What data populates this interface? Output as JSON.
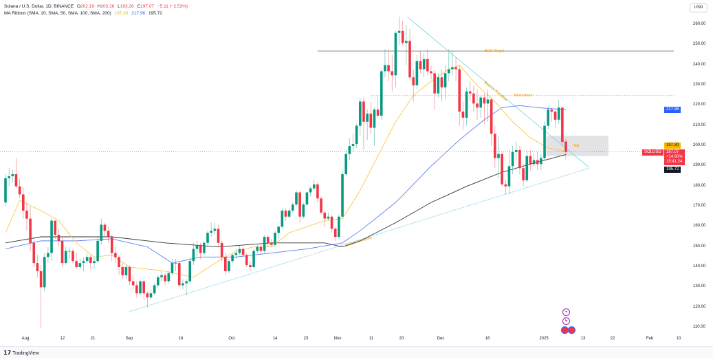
{
  "header": {
    "symbol": "Solana / U.S. Dollar, 1D, BINANCE",
    "o_label": "O",
    "o": "202.19",
    "h_label": "H",
    "h": "203.26",
    "l_label": "L",
    "l": "193.26",
    "c_label": "C",
    "c": "197.07",
    "change": "−5.11 (−2.53%)",
    "ma_label": "MA Ribbon (SMA, 20, SMA, 50, SMA, 100, SMA, 200)",
    "ma1": "197.30",
    "ma2": "217.96",
    "ma3": "195.72"
  },
  "currency": "USD",
  "price_ticks": [
    "260.00",
    "250.00",
    "240.00",
    "230.00",
    "220.00",
    "210.00",
    "200.00",
    "190.00",
    "180.00",
    "170.00",
    "160.00",
    "150.00",
    "140.00",
    "130.00",
    "120.00",
    "110.00"
  ],
  "tags": {
    "ma50": "217.96",
    "ma20": "197.30",
    "symbol": "SOLUSD",
    "price": "197.07",
    "pct": "+14.60%",
    "countdown": "15:41:24",
    "ma200": "195.72"
  },
  "time_ticks": [
    "Aug",
    "12",
    "21",
    "Sep",
    "16",
    "Oct",
    "14",
    "23",
    "Nov",
    "11",
    "20",
    "Dec",
    "16",
    "2025",
    "13",
    "22",
    "Feb",
    "10"
  ],
  "footer": {
    "brand": "TradingView"
  },
  "colors": {
    "up": "#089981",
    "down": "#f23645",
    "sma20": "#f7c948",
    "sma50": "#5b7cf7",
    "sma200": "#333333",
    "trend": "#7fd7ea",
    "level": "#888888",
    "annot": "#f5a623"
  },
  "chart_data": {
    "type": "candlestick",
    "ylim": [
      105,
      265
    ],
    "ohlc": [
      [
        172,
        186,
        170,
        184
      ],
      [
        184,
        189,
        180,
        185
      ],
      [
        185,
        188,
        182,
        186
      ],
      [
        186,
        194,
        179,
        180
      ],
      [
        180,
        184,
        174,
        176
      ],
      [
        176,
        180,
        164,
        168
      ],
      [
        168,
        172,
        158,
        164
      ],
      [
        164,
        170,
        148,
        152
      ],
      [
        152,
        155,
        140,
        142
      ],
      [
        142,
        146,
        135,
        138
      ],
      [
        138,
        141,
        110,
        130
      ],
      [
        130,
        147,
        128,
        145
      ],
      [
        145,
        150,
        142,
        147
      ],
      [
        147,
        164,
        143,
        163
      ],
      [
        163,
        163,
        154,
        156
      ],
      [
        156,
        159,
        150,
        153
      ],
      [
        153,
        155,
        140,
        142
      ],
      [
        142,
        150,
        141,
        148
      ],
      [
        148,
        150,
        144,
        148
      ],
      [
        148,
        149,
        142,
        143
      ],
      [
        143,
        147,
        139,
        140
      ],
      [
        140,
        144,
        139,
        142
      ],
      [
        142,
        145,
        138,
        143
      ],
      [
        143,
        147,
        142,
        145
      ],
      [
        145,
        146,
        139,
        142
      ],
      [
        142,
        145,
        139,
        143
      ],
      [
        143,
        155,
        142,
        153
      ],
      [
        153,
        164,
        151,
        161
      ],
      [
        161,
        162,
        155,
        158
      ],
      [
        158,
        160,
        152,
        155
      ],
      [
        155,
        156,
        143,
        147
      ],
      [
        147,
        150,
        142,
        145
      ],
      [
        145,
        146,
        136,
        140
      ],
      [
        140,
        142,
        134,
        136
      ],
      [
        136,
        141,
        134,
        140
      ],
      [
        140,
        141,
        131,
        133
      ],
      [
        133,
        136,
        129,
        131
      ],
      [
        131,
        133,
        125,
        127
      ],
      [
        127,
        134,
        126,
        133
      ],
      [
        133,
        134,
        124,
        127
      ],
      [
        127,
        128,
        120,
        125
      ],
      [
        125,
        129,
        124,
        127
      ],
      [
        127,
        132,
        126,
        131
      ],
      [
        131,
        136,
        130,
        135
      ],
      [
        135,
        138,
        133,
        136
      ],
      [
        136,
        137,
        131,
        133
      ],
      [
        133,
        138,
        132,
        137
      ],
      [
        137,
        144,
        136,
        142
      ],
      [
        142,
        144,
        138,
        142
      ],
      [
        142,
        143,
        130,
        131
      ],
      [
        131,
        134,
        129,
        132
      ],
      [
        132,
        134,
        126,
        133
      ],
      [
        133,
        145,
        132,
        143
      ],
      [
        143,
        152,
        141,
        149
      ],
      [
        149,
        153,
        145,
        151
      ],
      [
        151,
        152,
        144,
        147
      ],
      [
        147,
        153,
        146,
        152
      ],
      [
        152,
        158,
        150,
        157
      ],
      [
        157,
        162,
        155,
        158
      ],
      [
        158,
        162,
        156,
        159
      ],
      [
        159,
        161,
        150,
        152
      ],
      [
        152,
        153,
        143,
        145
      ],
      [
        145,
        147,
        136,
        138
      ],
      [
        138,
        144,
        137,
        143
      ],
      [
        143,
        147,
        142,
        146
      ],
      [
        146,
        149,
        144,
        147
      ],
      [
        147,
        151,
        146,
        149
      ],
      [
        149,
        150,
        145,
        146
      ],
      [
        146,
        147,
        140,
        141
      ],
      [
        141,
        143,
        138,
        140
      ],
      [
        140,
        149,
        139,
        148
      ],
      [
        148,
        151,
        147,
        150
      ],
      [
        150,
        151,
        146,
        148
      ],
      [
        148,
        156,
        147,
        155
      ],
      [
        155,
        156,
        150,
        152
      ],
      [
        152,
        154,
        150,
        151
      ],
      [
        151,
        158,
        150,
        157
      ],
      [
        157,
        161,
        154,
        160
      ],
      [
        160,
        169,
        159,
        168
      ],
      [
        168,
        169,
        163,
        165
      ],
      [
        165,
        169,
        164,
        168
      ],
      [
        168,
        172,
        167,
        171
      ],
      [
        171,
        178,
        170,
        177
      ],
      [
        177,
        178,
        162,
        165
      ],
      [
        165,
        172,
        164,
        171
      ],
      [
        171,
        177,
        170,
        177
      ],
      [
        177,
        180,
        175,
        179
      ],
      [
        179,
        183,
        178,
        181
      ],
      [
        181,
        182,
        172,
        174
      ],
      [
        174,
        175,
        166,
        167
      ],
      [
        167,
        168,
        160,
        164
      ],
      [
        164,
        167,
        163,
        165
      ],
      [
        165,
        166,
        157,
        159
      ],
      [
        159,
        160,
        153,
        155
      ],
      [
        155,
        166,
        154,
        165
      ],
      [
        165,
        188,
        164,
        186
      ],
      [
        186,
        198,
        185,
        196
      ],
      [
        196,
        204,
        193,
        200
      ],
      [
        200,
        206,
        197,
        201
      ],
      [
        201,
        211,
        199,
        210
      ],
      [
        210,
        224,
        205,
        222
      ],
      [
        222,
        224,
        198,
        212
      ],
      [
        212,
        218,
        203,
        216
      ],
      [
        216,
        222,
        206,
        209
      ],
      [
        209,
        219,
        200,
        218
      ],
      [
        218,
        225,
        214,
        215
      ],
      [
        215,
        238,
        213,
        237
      ],
      [
        237,
        248,
        234,
        240
      ],
      [
        240,
        248,
        232,
        237
      ],
      [
        237,
        245,
        227,
        235
      ],
      [
        235,
        257,
        229,
        256
      ],
      [
        256,
        264,
        250,
        257
      ],
      [
        257,
        262,
        250,
        251
      ],
      [
        251,
        260,
        240,
        252
      ],
      [
        252,
        258,
        233,
        234
      ],
      [
        234,
        238,
        222,
        230
      ],
      [
        230,
        245,
        228,
        242
      ],
      [
        242,
        247,
        236,
        238
      ],
      [
        238,
        246,
        234,
        243
      ],
      [
        243,
        248,
        235,
        237
      ],
      [
        237,
        240,
        233,
        236
      ],
      [
        236,
        238,
        218,
        226
      ],
      [
        226,
        236,
        224,
        234
      ],
      [
        234,
        238,
        222,
        229
      ],
      [
        229,
        240,
        223,
        236
      ],
      [
        236,
        248,
        232,
        238
      ],
      [
        238,
        247,
        235,
        239
      ],
      [
        239,
        244,
        232,
        238
      ],
      [
        238,
        240,
        210,
        217
      ],
      [
        217,
        222,
        208,
        214
      ],
      [
        214,
        229,
        210,
        227
      ],
      [
        227,
        232,
        222,
        226
      ],
      [
        226,
        230,
        217,
        221
      ],
      [
        221,
        228,
        213,
        219
      ],
      [
        219,
        225,
        214,
        224
      ],
      [
        224,
        226,
        211,
        221
      ],
      [
        221,
        228,
        212,
        223
      ],
      [
        223,
        224,
        200,
        206
      ],
      [
        206,
        210,
        189,
        194
      ],
      [
        194,
        205,
        184,
        196
      ],
      [
        196,
        197,
        180,
        181
      ],
      [
        181,
        183,
        176,
        180
      ],
      [
        180,
        198,
        176,
        190
      ],
      [
        190,
        200,
        186,
        197
      ],
      [
        197,
        202,
        193,
        198
      ],
      [
        198,
        200,
        186,
        189
      ],
      [
        189,
        191,
        180,
        183
      ],
      [
        183,
        198,
        182,
        195
      ],
      [
        195,
        198,
        188,
        191
      ],
      [
        191,
        196,
        190,
        193
      ],
      [
        193,
        197,
        188,
        191
      ],
      [
        191,
        196,
        188,
        194
      ],
      [
        194,
        212,
        193,
        210
      ],
      [
        210,
        220,
        208,
        218
      ],
      [
        218,
        219,
        212,
        217
      ],
      [
        217,
        218,
        209,
        213
      ],
      [
        213,
        223,
        211,
        219
      ],
      [
        219,
        219,
        200,
        202
      ],
      [
        202.19,
        203.26,
        193.26,
        197.07
      ]
    ],
    "sma20": [
      [
        0,
        157
      ],
      [
        4,
        173
      ],
      [
        10,
        168
      ],
      [
        15,
        163
      ],
      [
        20,
        152
      ],
      [
        25,
        145
      ],
      [
        30,
        146
      ],
      [
        35,
        140
      ],
      [
        45,
        138
      ],
      [
        50,
        136
      ],
      [
        53,
        135
      ],
      [
        60,
        143
      ],
      [
        65,
        148
      ],
      [
        70,
        150
      ],
      [
        75,
        150
      ],
      [
        80,
        157
      ],
      [
        90,
        163
      ],
      [
        95,
        164
      ],
      [
        100,
        178
      ],
      [
        105,
        195
      ],
      [
        110,
        212
      ],
      [
        115,
        225
      ],
      [
        120,
        232
      ],
      [
        125,
        238
      ],
      [
        128,
        240
      ],
      [
        133,
        230
      ],
      [
        138,
        222
      ],
      [
        143,
        212
      ],
      [
        148,
        204
      ],
      [
        153,
        199
      ],
      [
        158,
        197.3
      ]
    ],
    "sma50": [
      [
        0,
        149
      ],
      [
        10,
        153
      ],
      [
        20,
        153
      ],
      [
        30,
        154
      ],
      [
        40,
        150
      ],
      [
        47,
        142
      ],
      [
        55,
        145
      ],
      [
        65,
        145
      ],
      [
        75,
        147
      ],
      [
        85,
        149
      ],
      [
        95,
        152
      ],
      [
        100,
        158
      ],
      [
        110,
        172
      ],
      [
        120,
        190
      ],
      [
        128,
        203
      ],
      [
        135,
        213
      ],
      [
        140,
        219
      ],
      [
        145,
        220
      ],
      [
        150,
        219
      ],
      [
        158,
        217.96
      ]
    ],
    "sma200": [
      [
        0,
        152
      ],
      [
        10,
        155
      ],
      [
        30,
        155
      ],
      [
        45,
        152
      ],
      [
        60,
        150
      ],
      [
        75,
        152
      ],
      [
        90,
        152
      ],
      [
        95,
        150
      ],
      [
        100,
        153
      ],
      [
        110,
        162
      ],
      [
        120,
        172
      ],
      [
        130,
        180
      ],
      [
        140,
        187
      ],
      [
        150,
        192
      ],
      [
        158,
        195.72
      ]
    ],
    "annotations": {
      "bulls_target": {
        "label": "Bulls Target",
        "price": 247,
        "from": 88
      },
      "resistance": {
        "label": "Resistance",
        "price": 225,
        "from": 103
      },
      "bearish_trendline": {
        "label": "Bearish Trendline",
        "points": [
          [
            113.4,
            263.7
          ],
          [
            164.5,
            189.4
          ]
        ]
      },
      "bullish_trendline": {
        "label": "Bullish Trendline",
        "points": [
          [
            35,
            118
          ],
          [
            164.5,
            189
          ]
        ]
      },
      "fvg": {
        "label": "fvg",
        "from": 152.5,
        "to": 170,
        "top": 205,
        "bottom": 195
      },
      "last_price": 197.07
    }
  }
}
